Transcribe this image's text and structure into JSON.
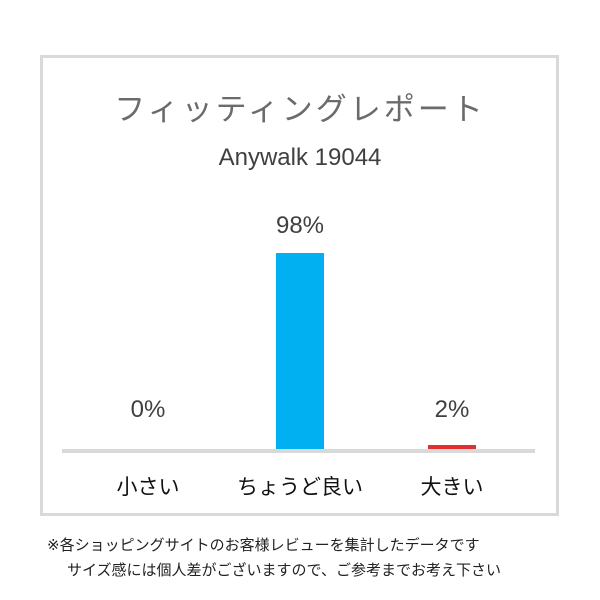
{
  "chart_data": {
    "type": "bar",
    "title": "フィッティングレポート",
    "subtitle": "Anywalk 19044",
    "categories": [
      "小さい",
      "ちょうど良い",
      "大きい"
    ],
    "values": [
      0,
      98,
      2
    ],
    "data_labels": [
      "0%",
      "98%",
      "2%"
    ],
    "colors": [
      "#00b0f0",
      "#00b0f0",
      "#e03030"
    ],
    "ylim": [
      0,
      100
    ],
    "grid": false,
    "legend": "none"
  },
  "footnote": {
    "line1": "※各ショッピングサイトのお客様レビューを集計したデータです",
    "line2": "サイズ感には個人差がございますので、ご参考までお考え下さい"
  }
}
